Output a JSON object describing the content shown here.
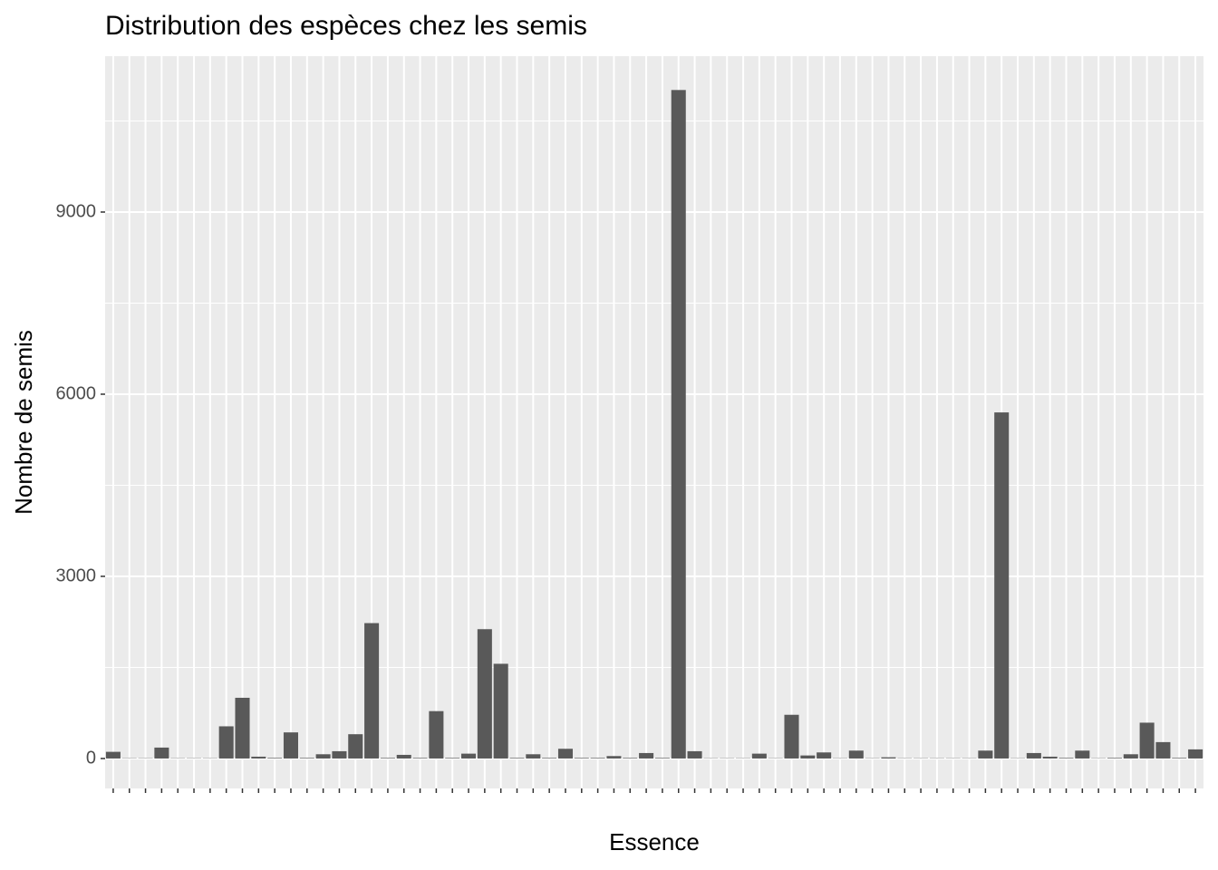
{
  "chart_data": {
    "type": "bar",
    "title": "Distribution des espèces chez les semis",
    "x_label": "Essence",
    "y_label": "Nombre de semis",
    "categories": [
      null,
      null,
      null,
      null,
      null,
      null,
      null,
      null,
      null,
      null,
      null,
      null,
      null,
      null,
      null,
      null,
      null,
      null,
      null,
      null,
      null,
      null,
      null,
      null,
      null,
      null,
      null,
      null,
      null,
      null,
      null,
      null,
      null,
      null,
      null,
      null,
      null,
      null,
      null,
      null,
      null,
      null,
      null,
      null,
      null,
      null,
      null,
      null,
      null,
      null,
      null,
      null,
      null,
      null,
      null,
      null,
      null,
      null,
      null,
      null,
      null,
      null,
      null,
      null,
      null,
      null,
      null,
      null
    ],
    "values": [
      110,
      5,
      5,
      180,
      5,
      5,
      5,
      530,
      1000,
      30,
      10,
      430,
      10,
      70,
      120,
      400,
      2230,
      10,
      60,
      10,
      780,
      10,
      80,
      2130,
      1560,
      10,
      70,
      10,
      160,
      10,
      10,
      40,
      10,
      90,
      10,
      11010,
      120,
      5,
      5,
      5,
      80,
      5,
      720,
      50,
      100,
      5,
      130,
      5,
      20,
      5,
      5,
      5,
      5,
      5,
      130,
      5700,
      5,
      90,
      30,
      10,
      130,
      5,
      10,
      70,
      590,
      270,
      10,
      150
    ],
    "color": "#595959",
    "ylim": [
      -493,
      11567
    ],
    "yticks": [
      0,
      3000,
      6000,
      9000
    ],
    "grid": true
  }
}
